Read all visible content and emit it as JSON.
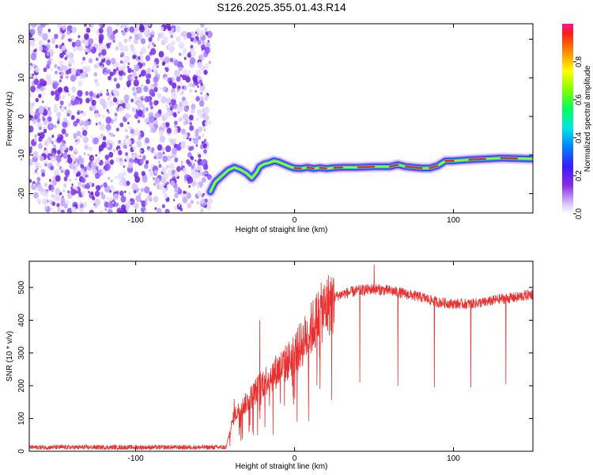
{
  "title": "S126.2025.355.01.43.R14",
  "chart_data": [
    {
      "type": "heatmap",
      "xlabel": "Height of straight line (km)",
      "ylabel": "Frequency (Hz)",
      "xlim": [
        -167,
        150
      ],
      "ylim": [
        -25,
        24
      ],
      "xticks": [
        -100,
        0,
        100
      ],
      "yticks": [
        -20,
        -10,
        0,
        10,
        20
      ],
      "colorbar": {
        "label": "Normalized spectral amplitude",
        "range": [
          0,
          1
        ],
        "ticks": [
          0,
          0.2,
          0.4,
          0.6,
          0.8
        ]
      },
      "noise_region": {
        "x": [
          -167,
          -53
        ],
        "y": [
          -25,
          24
        ]
      },
      "ridge": {
        "x": [
          -53,
          -50,
          -46,
          -42,
          -38,
          -34,
          -30,
          -27,
          -24,
          -22,
          -19,
          -16,
          -13,
          -10,
          -6,
          -3,
          0,
          4,
          8,
          12,
          16,
          20,
          25,
          30,
          40,
          50,
          60,
          65,
          70,
          80,
          85,
          90,
          95,
          100,
          110,
          120,
          130,
          140,
          150
        ],
        "y": [
          -19.5,
          -17,
          -15.5,
          -14,
          -13.2,
          -13.8,
          -14.8,
          -16,
          -14.5,
          -13,
          -12.3,
          -12,
          -11.5,
          -11.8,
          -12.5,
          -13,
          -13.4,
          -13.5,
          -13.2,
          -13.5,
          -13.3,
          -13.5,
          -13.3,
          -13.2,
          -13.2,
          -13,
          -13,
          -12.5,
          -13,
          -13.4,
          -13.4,
          -12.8,
          -11.5,
          -11.5,
          -11.2,
          -11,
          -10.8,
          -10.9,
          -11
        ]
      }
    },
    {
      "type": "line",
      "xlabel": "Height of straight line (km)",
      "ylabel": "SNR (10 * v/v)",
      "xlim": [
        -167,
        150
      ],
      "ylim": [
        0,
        580
      ],
      "xticks": [
        -100,
        0,
        100
      ],
      "yticks": [
        0,
        100,
        200,
        300,
        400,
        500
      ],
      "color": "#e8312f",
      "baseline": {
        "x": [
          -167,
          -43
        ],
        "y": 12
      },
      "trend": {
        "x": [
          -43,
          -38,
          -30,
          -25,
          -20,
          -15,
          -10,
          -5,
          0,
          5,
          10,
          15,
          20,
          25,
          30,
          40,
          50,
          60,
          70,
          80,
          90,
          100,
          110,
          120,
          130,
          140,
          150
        ],
        "y": [
          15,
          110,
          150,
          180,
          210,
          230,
          250,
          270,
          300,
          330,
          370,
          410,
          440,
          470,
          480,
          490,
          495,
          490,
          480,
          470,
          455,
          450,
          450,
          455,
          465,
          470,
          480
        ]
      },
      "dips": [
        {
          "x": 16,
          "y": 190
        },
        {
          "x": 41,
          "y": 210
        },
        {
          "x": 65,
          "y": 200
        },
        {
          "x": 88,
          "y": 195
        },
        {
          "x": 111,
          "y": 195
        },
        {
          "x": 133,
          "y": 205
        }
      ],
      "spikes": [
        {
          "x": -22,
          "y": 400
        },
        {
          "x": -38,
          "y": 160
        },
        {
          "x": 50,
          "y": 570
        }
      ]
    }
  ]
}
